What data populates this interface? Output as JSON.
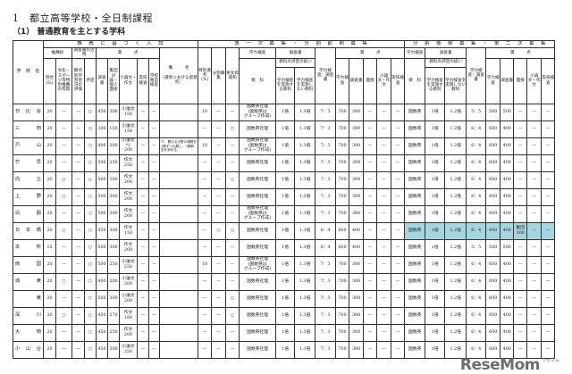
{
  "title": "1　都立高等学校・全日制課程",
  "subtitle": "（1） 普通教育を主とする学科",
  "headers": {
    "school": "学　校　名",
    "suisen": "推　薦　に　基　づ　く　入　試",
    "ichiji": "第　一　次　募　集　・　分　割　前　期　募　集",
    "kouki": "分　割　後　期　募　集　・　第　二　次　募　集",
    "suisen_waku": "推薦枠",
    "chousasho_katsuyou": "調査書の活用",
    "manten": "満　　　点",
    "bikou": "備　　　考\n\n（選考における留意点）",
    "wariai": "割合\n(%)",
    "bunka_sports": "文化・スポーツ等特別推薦の有無",
    "kanten": "観点別学習状況の評価",
    "hyoutei": "評定",
    "chousasho": "調査書",
    "shuudan": "集団討論・個人面接",
    "shouronbun": "小論文・作文",
    "jitsugi": "実技検査",
    "dokuji": "学校独自検査",
    "tokubetsu": "特別選考\n(%)",
    "bunkatsu": "分割募集",
    "danjo": "男女枠緩和",
    "gakuryoku_kensa": "学力検査",
    "kyouka": "教　科",
    "hyoutei_atsukai": "教科の評定の扱い",
    "jisshi_suru": "学力検査を実施する教科",
    "jisshi_shinai": "学力検査を実施しない教科",
    "ratio": "学力検査：調査書",
    "gakuryoku": "学力検査",
    "mensetsu": "面接",
    "shouronbun2": "小論文・作文",
    "jitsugi2": "実技検査"
  },
  "rows": [
    {
      "school": "日 比 谷",
      "cells": [
        "20",
        "—",
        "—",
        "○",
        "450",
        "300",
        "小論文\n150",
        "—",
        "—",
        "",
        "10",
        "—",
        "—",
        "国数英社理\n(国数英は\nグループ作成)",
        "1倍",
        "1.3倍",
        "7：3",
        "700",
        "300",
        "—",
        "—",
        "—",
        "国数英",
        "1倍",
        "1.2倍",
        "5：5",
        "500",
        "500",
        "—",
        "—",
        "—"
      ]
    },
    {
      "school": "三　　田",
      "cells": [
        "20",
        "—",
        "—",
        "○",
        "300",
        "150",
        "小論文\n150",
        "—",
        "—",
        "",
        "—",
        "—",
        "○",
        "国数英社理",
        "1倍",
        "1.3倍",
        "7：3",
        "700",
        "300",
        "—",
        "—",
        "—",
        "国数英",
        "1倍",
        "1.2倍",
        "6：4",
        "600",
        "400",
        "—",
        "—",
        "—"
      ]
    },
    {
      "school": "戸　　山",
      "cells": [
        "20",
        "—",
        "—",
        "○",
        "400",
        "200",
        "小論文\n*1\n200",
        "—",
        "—",
        "*1　異なる分野の課題を1題ずつ出題し、2題解答を求める。",
        "10",
        "—",
        "—",
        "国数英社理\n(国数英は\nグループ作成)",
        "1倍",
        "1.3倍",
        "7：3",
        "700",
        "300",
        "—",
        "—",
        "—",
        "国数英",
        "1倍",
        "1.2倍",
        "6：4",
        "600",
        "400",
        "—",
        "—",
        "—"
      ]
    },
    {
      "school": "竹　　早",
      "cells": [
        "20",
        "—",
        "—",
        "○",
        "500",
        "250",
        "作文\n250",
        "—",
        "—",
        "",
        "—",
        "—",
        "—",
        "国数英社理",
        "1倍",
        "1.3倍",
        "7：3",
        "700",
        "300",
        "—",
        "—",
        "—",
        "国数英",
        "1倍",
        "1.2倍",
        "6：4",
        "600",
        "400",
        "—",
        "—",
        "—"
      ]
    },
    {
      "school": "向　　丘",
      "cells": [
        "20",
        "○",
        "—",
        "○",
        "500",
        "300",
        "作文\n200",
        "—",
        "—",
        "",
        "—",
        "—",
        "○",
        "国数英社理",
        "1倍",
        "1.3倍",
        "7：3",
        "700",
        "300",
        "—",
        "—",
        "—",
        "国数英",
        "1倍",
        "1.2倍",
        "6：4",
        "600",
        "400",
        "—",
        "—",
        "—"
      ]
    },
    {
      "school": "上　　野",
      "cells": [
        "20",
        "○",
        "—",
        "○",
        "500",
        "300",
        "作文\n200",
        "—",
        "—",
        "",
        "—",
        "—",
        "—",
        "国数英社理",
        "1倍",
        "1.3倍",
        "7：3",
        "700",
        "300",
        "—",
        "—",
        "—",
        "国数英",
        "1倍",
        "1.2倍",
        "6：4",
        "600",
        "400",
        "—",
        "—",
        "—"
      ]
    },
    {
      "school": "白　　鷗",
      "cells": [
        "20",
        "—",
        "—",
        "○",
        "500",
        "300",
        "作文\n200",
        "—",
        "—",
        "",
        "—",
        "—",
        "—",
        "国数英社理\n(国数英は\nグループ作成)",
        "1倍",
        "1.3倍",
        "7：3",
        "700",
        "300",
        "—",
        "—",
        "—",
        "国数英",
        "1倍",
        "1.2倍",
        "6：4",
        "600",
        "400",
        "—",
        "—",
        "—"
      ]
    },
    {
      "school": "日 本 橋",
      "highlight": true,
      "cells": [
        "20",
        "○",
        "—",
        "○",
        "450",
        "300",
        "作文\n150",
        "—",
        "—",
        "",
        "—",
        "○",
        "○",
        "国数英社理",
        "1倍",
        "1.3倍",
        "6：4",
        "600",
        "400",
        "—",
        "—",
        "—",
        "国数英",
        "1倍",
        "1.2倍",
        "6：4",
        "600",
        "400",
        "集団\n300",
        "—",
        "—"
      ]
    },
    {
      "school": "本　　所",
      "cells": [
        "15",
        "—",
        "—",
        "○",
        "500",
        "300",
        "作文\n200",
        "—",
        "—",
        "",
        "—",
        "—",
        "—",
        "国数英社理",
        "1倍",
        "1.3倍",
        "6：4",
        "600",
        "400",
        "—",
        "—",
        "—",
        "国数英",
        "1倍",
        "1.2倍",
        "5：5",
        "500",
        "500",
        "—",
        "—",
        "—"
      ]
    },
    {
      "school": "両　　国",
      "cells": [
        "20",
        "—",
        "—",
        "○",
        "500",
        "250",
        "小論文\n250",
        "—",
        "—",
        "",
        "10",
        "—",
        "—",
        "国数英社理\n(国数英は\nグループ作成)",
        "1倍",
        "1.3倍",
        "7：3",
        "700",
        "300",
        "—",
        "—",
        "—",
        "国数英",
        "1倍",
        "1.2倍",
        "6：4",
        "600",
        "400",
        "—",
        "—",
        "—"
      ]
    },
    {
      "school": "城　　東",
      "cells": [
        "20",
        "○",
        "—",
        "○",
        "400",
        "200",
        "小論文\n200",
        "—",
        "—",
        "",
        "—",
        "—",
        "—",
        "国数英社理",
        "1倍",
        "1.3倍",
        "7：3",
        "700",
        "300",
        "—",
        "—",
        "—",
        "国数英",
        "1倍",
        "1.2倍",
        "6：4",
        "600",
        "400",
        "—",
        "—",
        "—"
      ]
    },
    {
      "school": "　 東",
      "cells": [
        "20",
        "—",
        "—",
        "○",
        "500",
        "300",
        "小論文\n200",
        "—",
        "—",
        "",
        "—",
        "—",
        "○",
        "国数英社理",
        "1倍",
        "1.3倍",
        "7：3",
        "700",
        "300",
        "—",
        "—",
        "—",
        "国数英",
        "1倍",
        "1.2倍",
        "6：4",
        "600",
        "400",
        "—",
        "—",
        "—"
      ]
    },
    {
      "school": "深　　川",
      "cells": [
        "20",
        "○",
        "—",
        "○",
        "450",
        "270",
        "作文\n180",
        "—",
        "—",
        "",
        "—",
        "—",
        "○",
        "国数英社理",
        "1倍",
        "1.3倍",
        "7：3",
        "700",
        "300",
        "—",
        "—",
        "—",
        "国数英",
        "1倍",
        "1.2倍",
        "6：4",
        "600",
        "400",
        "—",
        "—",
        "—"
      ]
    },
    {
      "school": "大　　崎",
      "cells": [
        "20",
        "—",
        "—",
        "○",
        "450",
        "250",
        "作文\n200",
        "—",
        "—",
        "",
        "—",
        "—",
        "—",
        "国数英社理",
        "1倍",
        "1.3倍",
        "7：3",
        "700",
        "300",
        "—",
        "—",
        "—",
        "国数英",
        "1倍",
        "1.2倍",
        "6：4",
        "600",
        "400",
        "—",
        "—",
        "—"
      ]
    },
    {
      "school": "小 山 台",
      "cells": [
        "20",
        "—",
        "—",
        "○",
        "450",
        "200",
        "小論文\n250",
        "—",
        "—",
        "",
        "—",
        "—",
        "—",
        "国数英社理",
        "1倍",
        "1.3倍",
        "7：3",
        "700",
        "300",
        "—",
        "—",
        "—",
        "国数英",
        "1倍",
        "1.2倍",
        "6：4",
        "600",
        "400",
        "—",
        "—",
        "—"
      ]
    }
  ],
  "colors": {
    "highlight": "#a6d5df",
    "watermark": "#6d6d6d"
  },
  "watermark": "ReseMom",
  "watermark_kana": "リセマム"
}
